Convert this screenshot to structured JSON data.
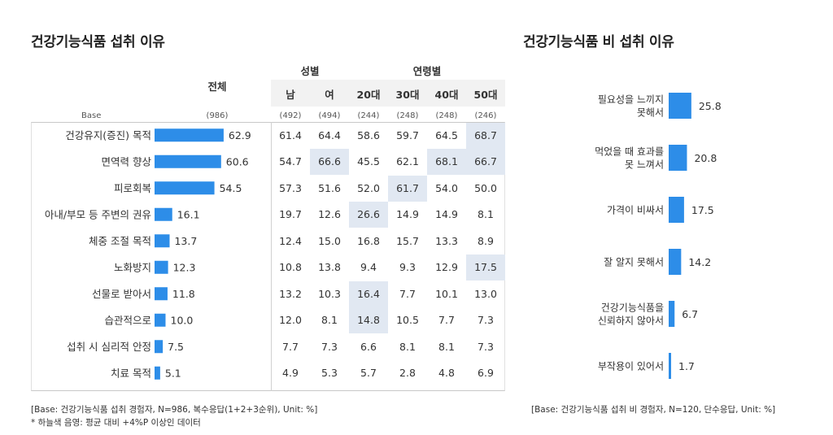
{
  "left": {
    "title": "건강기능식품 섭취 이유",
    "col_total": "전체",
    "group_gender": "성별",
    "group_age": "연령별",
    "cols": [
      "남",
      "여",
      "20대",
      "30대",
      "40대",
      "50대"
    ],
    "base_label": "Base",
    "base_total": "(986)",
    "base_cols": [
      "(492)",
      "(494)",
      "(244)",
      "(248)",
      "(248)",
      "(246)"
    ],
    "footnote1": "[Base: 건강기능식품 섭취 경험자, N=986, 복수응답(1+2+3순위), Unit: %]",
    "footnote2": "* 하늘색 음영: 평균 대비 +4%P 이상인 데이터"
  },
  "right": {
    "title": "건강기능식품 비 섭취 이유",
    "footnote": "[Base: 건강기능식품 섭취 비 경험자, N=120, 단수응답, Unit: %]"
  },
  "chart_data": [
    {
      "type": "bar",
      "orientation": "horizontal",
      "title": "건강기능식품 섭취 이유",
      "categories": [
        "건강유지(증진) 목적",
        "면역력 향상",
        "피로회복",
        "아내/부모 등 주변의 권유",
        "체중 조절 목적",
        "노화방지",
        "선물로 받아서",
        "습관적으로",
        "섭취 시 심리적 안정",
        "치료 목적"
      ],
      "values": [
        62.9,
        60.6,
        54.5,
        16.1,
        13.7,
        12.3,
        11.8,
        10.0,
        7.5,
        5.1
      ],
      "value_labels": [
        "62.9",
        "60.6",
        "54.5",
        "16.1",
        "13.7",
        "12.3",
        "11.8",
        "10.0",
        "7.5",
        "5.1"
      ],
      "xlim": [
        0,
        100
      ],
      "table": {
        "columns": [
          "남",
          "여",
          "20대",
          "30대",
          "40대",
          "50대"
        ],
        "rows": [
          [
            "61.4",
            "64.4",
            "58.6",
            "59.7",
            "64.5",
            "68.7"
          ],
          [
            "54.7",
            "66.6",
            "45.5",
            "62.1",
            "68.1",
            "66.7"
          ],
          [
            "57.3",
            "51.6",
            "52.0",
            "61.7",
            "54.0",
            "50.0"
          ],
          [
            "19.7",
            "12.6",
            "26.6",
            "14.9",
            "14.9",
            "8.1"
          ],
          [
            "12.4",
            "15.0",
            "16.8",
            "15.7",
            "13.3",
            "8.9"
          ],
          [
            "10.8",
            "13.8",
            "9.4",
            "9.3",
            "12.9",
            "17.5"
          ],
          [
            "13.2",
            "10.3",
            "16.4",
            "7.7",
            "10.1",
            "13.0"
          ],
          [
            "12.0",
            "8.1",
            "14.8",
            "10.5",
            "7.7",
            "7.3"
          ],
          [
            "7.7",
            "7.3",
            "6.6",
            "8.1",
            "8.1",
            "7.3"
          ],
          [
            "4.9",
            "5.3",
            "5.7",
            "2.8",
            "4.8",
            "6.9"
          ]
        ],
        "highlighted": [
          [
            0,
            5
          ],
          [
            1,
            1
          ],
          [
            1,
            4
          ],
          [
            1,
            5
          ],
          [
            2,
            3
          ],
          [
            3,
            2
          ],
          [
            5,
            5
          ],
          [
            6,
            2
          ],
          [
            7,
            2
          ]
        ]
      }
    },
    {
      "type": "bar",
      "orientation": "horizontal",
      "title": "건강기능식품 비 섭취 이유",
      "categories": [
        [
          "필요성을 느끼지",
          "못해서"
        ],
        [
          "먹었을 때 효과를",
          "못 느껴서"
        ],
        [
          "가격이 비싸서"
        ],
        [
          "잘 알지 못해서"
        ],
        [
          "건강기능식품을",
          "신뢰하지 않아서"
        ],
        [
          "부작용이 있어서"
        ]
      ],
      "values": [
        25.8,
        20.8,
        17.5,
        14.2,
        6.7,
        1.7
      ],
      "value_labels": [
        "25.8",
        "20.8",
        "17.5",
        "14.2",
        "6.7",
        "1.7"
      ],
      "xlim": [
        0,
        100
      ]
    }
  ],
  "colors": {
    "bar": "#2d8de8",
    "highlight": "#e1e8f2",
    "header_bg": "#f2f2f2",
    "line": "#cccccc"
  }
}
